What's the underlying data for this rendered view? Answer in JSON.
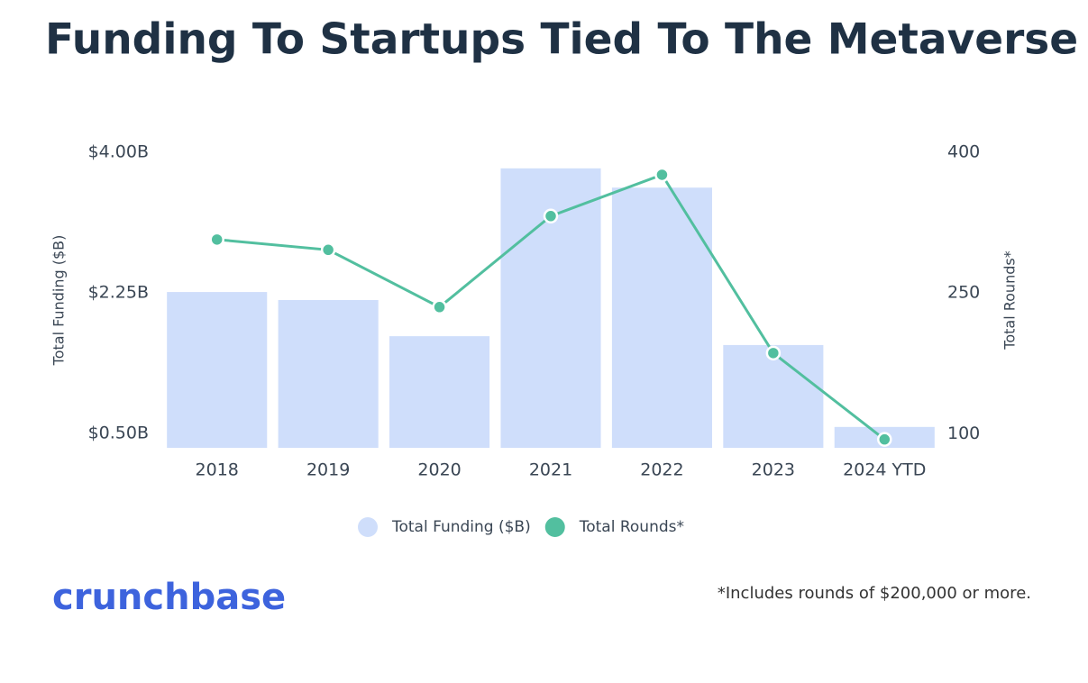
{
  "chart_data": {
    "type": "bar",
    "title": "Funding To Startups Tied To The Metaverse And AR/VR",
    "categories": [
      "2018",
      "2019",
      "2020",
      "2021",
      "2022",
      "2023",
      "2024 YTD"
    ],
    "series": [
      {
        "name": "Total Funding ($B)",
        "type": "bar",
        "color": "#cfdefb",
        "values": [
          2.26,
          2.16,
          1.71,
          3.8,
          3.56,
          1.6,
          0.58
        ]
      },
      {
        "name": "Total Rounds*",
        "type": "line",
        "axis": "y2",
        "color": "#52bf9f",
        "values": [
          307,
          296,
          235,
          332,
          376,
          186,
          94
        ]
      }
    ],
    "ylabel": "Total Funding ($B)",
    "y2label": "Total Rounds*",
    "ylim": [
      0.32,
      4.0
    ],
    "yticks": [
      {
        "value": 0.5,
        "label": "$0.50B"
      },
      {
        "value": 2.25,
        "label": "$2.25B"
      },
      {
        "value": 4.0,
        "label": "$4.00B"
      }
    ],
    "y2lim": [
      85,
      400
    ],
    "y2ticks": [
      100,
      250,
      400
    ],
    "legend": "bottom"
  },
  "logo": "crunchbase",
  "footnote": "*Includes rounds of $200,000 or more."
}
